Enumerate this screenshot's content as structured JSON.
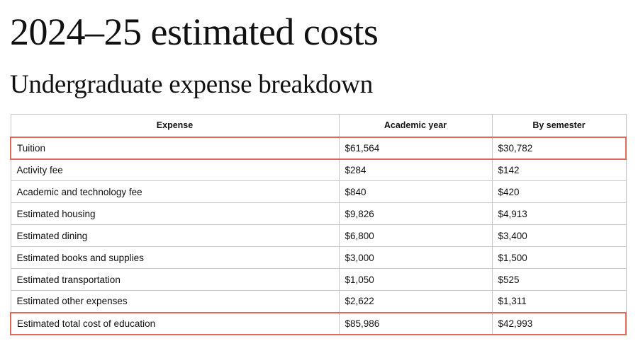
{
  "page": {
    "title": "2024–25 estimated costs",
    "subtitle": "Undergraduate expense breakdown"
  },
  "table": {
    "headers": [
      "Expense",
      "Academic year",
      "By semester"
    ],
    "highlight_color": "#e0675b",
    "rows": [
      {
        "expense": "Tuition",
        "year": "$61,564",
        "semester": "$30,782",
        "highlight": true
      },
      {
        "expense": "Activity fee",
        "year": "$284",
        "semester": "$142",
        "highlight": false
      },
      {
        "expense": "Academic and technology fee",
        "year": "$840",
        "semester": "$420",
        "highlight": false
      },
      {
        "expense": "Estimated housing",
        "year": "$9,826",
        "semester": "$4,913",
        "highlight": false
      },
      {
        "expense": "Estimated dining",
        "year": "$6,800",
        "semester": "$3,400",
        "highlight": false
      },
      {
        "expense": "Estimated books and supplies",
        "year": "$3,000",
        "semester": "$1,500",
        "highlight": false
      },
      {
        "expense": "Estimated transportation",
        "year": "$1,050",
        "semester": "$525",
        "highlight": false
      },
      {
        "expense": "Estimated other expenses",
        "year": "$2,622",
        "semester": "$1,311",
        "highlight": false
      },
      {
        "expense": "Estimated total cost of education",
        "year": "$85,986",
        "semester": "$42,993",
        "highlight": true
      }
    ]
  }
}
